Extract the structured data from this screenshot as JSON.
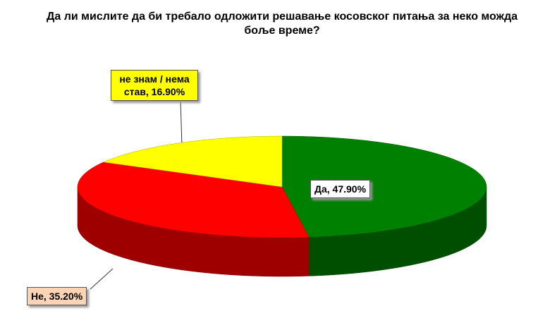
{
  "chart_data": {
    "type": "pie3d",
    "title": "Да ли мислите да би требало одложити решавање косовског питања за неко можда боље време?",
    "categories": [
      "Да",
      "Не",
      "не знам / нема став"
    ],
    "values": [
      47.9,
      35.2,
      16.9
    ],
    "value_labels": [
      "Да, 47.90%",
      "Не, 35.20%",
      "не знам / нема став, 16.90%"
    ],
    "colors": [
      "#008000",
      "#ff0000",
      "#ffff00"
    ]
  }
}
